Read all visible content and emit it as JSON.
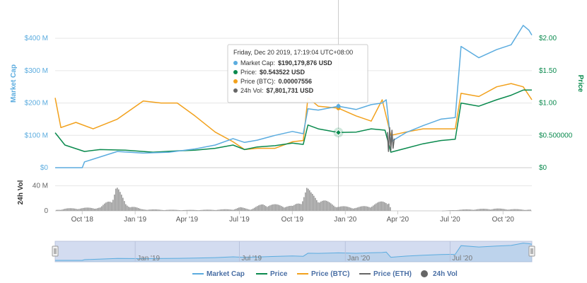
{
  "chart_data": {
    "type": "line",
    "x_axis": {
      "ticks": [
        "Oct '18",
        "Jan '19",
        "Apr '19",
        "Jul '19",
        "Oct '19",
        "Jan '20",
        "Apr '20",
        "Jul '20",
        "Oct '20"
      ],
      "start": "2018-08-15",
      "end": "2020-11-20"
    },
    "left_axis": {
      "title": "Market Cap",
      "ticks": [
        "$0",
        "$100 M",
        "$200 M",
        "$300 M",
        "$400 M"
      ],
      "range": [
        0,
        420000000
      ]
    },
    "right_axis": {
      "title": "Price",
      "ticks": [
        "$0",
        "$0.500000",
        "$1.00",
        "$1.50",
        "$2.00"
      ],
      "range": [
        0,
        2.1
      ]
    },
    "volume_axis": {
      "title": "24h Vol",
      "ticks": [
        "0",
        "40 M"
      ],
      "range": [
        0,
        60000000
      ]
    },
    "colors": {
      "market_cap": "#5bacdf",
      "price": "#0a8a4e",
      "price_btc": "#f2a11c",
      "price_eth": "#666666",
      "volume": "#999999",
      "navigator_fill": "#d3dcf0"
    },
    "series": [
      {
        "name": "Market Cap",
        "color": "#5bacdf",
        "axis": "left",
        "x": [
          "2018-08-15",
          "2018-10-01",
          "2018-10-05",
          "2018-12-01",
          "2019-01-15",
          "2019-03-01",
          "2019-04-15",
          "2019-05-20",
          "2019-06-20",
          "2019-07-10",
          "2019-08-01",
          "2019-09-01",
          "2019-10-01",
          "2019-10-20",
          "2019-10-28",
          "2019-11-15",
          "2019-12-20",
          "2020-01-20",
          "2020-02-15",
          "2020-03-05",
          "2020-03-12",
          "2020-03-20",
          "2020-04-15",
          "2020-05-15",
          "2020-06-15",
          "2020-07-10",
          "2020-07-20",
          "2020-08-20",
          "2020-09-20",
          "2020-10-15",
          "2020-11-05",
          "2020-11-15",
          "2020-11-20"
        ],
        "values": [
          0,
          0,
          18000000,
          50000000,
          45000000,
          48000000,
          58000000,
          70000000,
          90000000,
          78000000,
          85000000,
          100000000,
          112000000,
          105000000,
          182000000,
          178000000,
          190179876,
          180000000,
          195000000,
          200000000,
          210000000,
          80000000,
          108000000,
          130000000,
          150000000,
          155000000,
          375000000,
          340000000,
          365000000,
          380000000,
          440000000,
          425000000,
          410000000
        ]
      },
      {
        "name": "Price",
        "color": "#0a8a4e",
        "axis": "right",
        "x": [
          "2018-08-15",
          "2018-09-01",
          "2018-10-05",
          "2018-11-01",
          "2018-12-15",
          "2019-02-01",
          "2019-03-15",
          "2019-04-15",
          "2019-05-20",
          "2019-06-20",
          "2019-07-10",
          "2019-08-01",
          "2019-09-01",
          "2019-10-01",
          "2019-10-20",
          "2019-10-28",
          "2019-11-15",
          "2019-12-20",
          "2020-01-20",
          "2020-02-15",
          "2020-03-10",
          "2020-03-20",
          "2020-04-15",
          "2020-05-15",
          "2020-06-15",
          "2020-07-10",
          "2020-07-20",
          "2020-08-20",
          "2020-09-20",
          "2020-10-15",
          "2020-11-05",
          "2020-11-20"
        ],
        "values": [
          0.54,
          0.35,
          0.25,
          0.28,
          0.27,
          0.24,
          0.26,
          0.27,
          0.3,
          0.35,
          0.28,
          0.32,
          0.34,
          0.38,
          0.36,
          0.66,
          0.6,
          0.543522,
          0.55,
          0.6,
          0.58,
          0.24,
          0.3,
          0.37,
          0.42,
          0.44,
          1.0,
          0.95,
          1.05,
          1.12,
          1.2,
          1.2
        ]
      },
      {
        "name": "Price (BTC)",
        "color": "#f2a11c",
        "axis": "right",
        "x": [
          "2018-08-15",
          "2018-08-25",
          "2018-09-20",
          "2018-10-20",
          "2018-12-01",
          "2019-01-15",
          "2019-02-15",
          "2019-03-15",
          "2019-04-15",
          "2019-05-20",
          "2019-06-20",
          "2019-07-10",
          "2019-08-01",
          "2019-09-01",
          "2019-10-01",
          "2019-10-20",
          "2019-10-28",
          "2019-11-15",
          "2019-12-20",
          "2020-01-20",
          "2020-02-15",
          "2020-03-05",
          "2020-03-20",
          "2020-04-15",
          "2020-05-15",
          "2020-06-15",
          "2020-07-10",
          "2020-07-20",
          "2020-08-20",
          "2020-09-20",
          "2020-10-15",
          "2020-11-05",
          "2020-11-20"
        ],
        "values": [
          1.08,
          0.62,
          0.7,
          0.6,
          0.75,
          1.03,
          1.0,
          1.0,
          0.8,
          0.55,
          0.4,
          0.28,
          0.3,
          0.3,
          0.4,
          0.42,
          1.08,
          0.95,
          0.92,
          0.8,
          0.72,
          1.05,
          0.5,
          0.55,
          0.6,
          0.6,
          0.6,
          1.15,
          1.1,
          1.25,
          1.3,
          1.25,
          1.05
        ]
      },
      {
        "name": "Price (ETH)",
        "color": "#666666",
        "axis": "right",
        "x": [
          "2020-03-14",
          "2020-03-16",
          "2020-03-18",
          "2020-03-20",
          "2020-03-22",
          "2020-03-24",
          "2020-03-26"
        ],
        "values": [
          0.55,
          0.25,
          0.62,
          0.26,
          0.58,
          0.3,
          0.45
        ]
      }
    ],
    "volume_series": {
      "name": "24h Vol",
      "color": "#999999",
      "x": [
        "2018-08-15",
        "2018-09-01",
        "2018-10-01",
        "2018-11-01",
        "2018-11-20",
        "2018-11-28",
        "2018-12-05",
        "2018-12-15",
        "2019-01-10",
        "2019-02-15",
        "2019-04-01",
        "2019-05-15",
        "2019-06-20",
        "2019-07-01",
        "2019-07-20",
        "2019-08-10",
        "2019-09-10",
        "2019-10-01",
        "2019-10-15",
        "2019-10-25",
        "2019-11-01",
        "2019-11-15",
        "2019-12-01",
        "2019-12-20",
        "2020-01-20",
        "2020-02-15",
        "2020-03-15",
        "2020-03-20",
        "2020-04-15",
        "2020-05-15",
        "2020-06-15",
        "2020-07-15",
        "2020-08-15",
        "2020-09-15",
        "2020-10-15",
        "2020-11-20"
      ],
      "values": [
        1500000,
        4000000,
        5000000,
        6000000,
        22000000,
        45000000,
        30000000,
        12000000,
        3000000,
        2000000,
        1500000,
        2000000,
        3000000,
        6000000,
        3000000,
        12000000,
        10000000,
        8000000,
        18000000,
        40000000,
        30000000,
        22000000,
        15000000,
        8000000,
        6000000,
        10000000,
        20000000,
        0,
        0,
        0,
        0,
        2000000,
        3000000,
        4000000,
        3000000,
        2000000
      ]
    },
    "tooltip": {
      "date": "Friday, Dec 20 2019, 17:19:04 UTC+08:00",
      "date_iso": "2019-12-20",
      "rows": [
        {
          "label": "Market Cap:",
          "value": "$190,179,876 USD",
          "color": "#5bacdf"
        },
        {
          "label": "Price:",
          "value": "$0.543522 USD",
          "color": "#0a8a4e"
        },
        {
          "label": "Price (BTC):",
          "value": "0.00007556",
          "color": "#f2a11c"
        },
        {
          "label": "24h Vol:",
          "value": "$7,801,731 USD",
          "color": "#666666"
        }
      ]
    },
    "navigator": {
      "ticks": [
        "Jan '19",
        "Jul '19",
        "Jan '20",
        "Jul '20"
      ]
    },
    "legend": {
      "placement": "bottom-center",
      "items": [
        {
          "label": "Market Cap",
          "color": "#5bacdf",
          "marker": "line"
        },
        {
          "label": "Price",
          "color": "#0a8a4e",
          "marker": "line"
        },
        {
          "label": "Price (BTC)",
          "color": "#f2a11c",
          "marker": "line"
        },
        {
          "label": "Price (ETH)",
          "color": "#666666",
          "marker": "line"
        },
        {
          "label": "24h Vol",
          "color": "#666666",
          "marker": "circle"
        }
      ]
    },
    "grid": true
  }
}
